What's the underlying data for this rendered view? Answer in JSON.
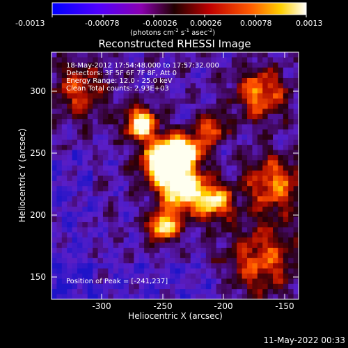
{
  "colorbar": {
    "tick_labels": [
      "-0.0013",
      "-0.00078",
      "-0.00026",
      "0.00026",
      "0.00078",
      "0.0013"
    ],
    "units": "(photons cm",
    "units_exp1": "-2",
    "units_s": " s",
    "units_exp2": "-1",
    "units_asec": " asec",
    "units_exp3": "-2",
    "units_close": ")",
    "colors": [
      "#0000ff",
      "#5a00ff",
      "#9a00c8",
      "#1a0000",
      "#c80000",
      "#ff5000",
      "#ffd000",
      "#ffffff"
    ]
  },
  "image": {
    "title": "Reconstructed RHESSI Image",
    "info_lines": [
      "18-May-2012 17:54:48.000 to 17:57:32.000",
      "Detectors: 3F 5F 6F 7F 8F, Att 0",
      "Energy Range: 12.0 - 25.0 keV",
      "Clean    Total counts: 2.93E+03"
    ],
    "peak_label": "Position of Peak = [-241,237]",
    "xlabel": "Heliocentric X (arcsec)",
    "ylabel": "Heliocentric Y (arcsec)",
    "x_ticks": [
      "-300",
      "-250",
      "-200",
      "-150"
    ],
    "y_ticks": [
      "150",
      "200",
      "250",
      "300"
    ],
    "x_range": [
      -335,
      -145
    ],
    "y_range": [
      135,
      325
    ],
    "peak": [
      -241,
      237
    ]
  },
  "footer": {
    "timestamp": "11-May-2022 00:33"
  }
}
